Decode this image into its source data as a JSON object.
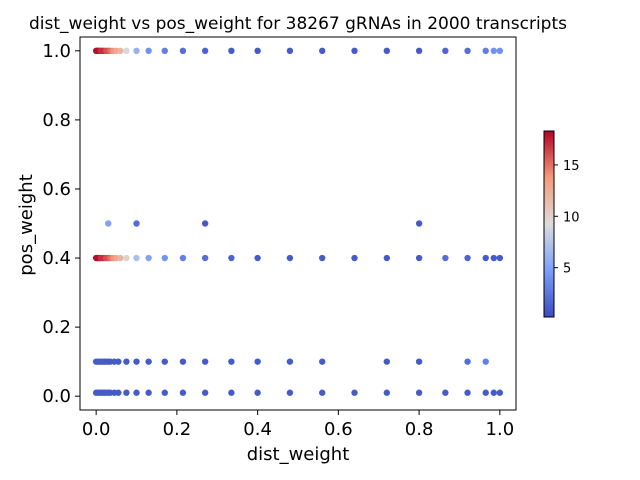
{
  "chart_data": {
    "type": "scatter",
    "title": "dist_weight vs pos_weight for 38267 gRNAs in 2000 transcripts",
    "xlabel": "dist_weight",
    "ylabel": "pos_weight",
    "xlim": [
      -0.04,
      1.04
    ],
    "ylim": [
      -0.04,
      1.04
    ],
    "xticks": [
      0.0,
      0.2,
      0.4,
      0.6,
      0.8,
      1.0
    ],
    "yticks": [
      0.0,
      0.2,
      0.4,
      0.6,
      0.8,
      1.0
    ],
    "xtick_labels": [
      "0.0",
      "0.2",
      "0.4",
      "0.6",
      "0.8",
      "1.0"
    ],
    "ytick_labels": [
      "0.0",
      "0.2",
      "0.4",
      "0.6",
      "0.8",
      "1.0"
    ],
    "grid": false,
    "colormap": "coolwarm",
    "colorbar": {
      "min": 0.2,
      "max": 18.3,
      "ticks": [
        5,
        10,
        15
      ],
      "tick_labels": [
        "5",
        "10",
        "15"
      ]
    },
    "series": [
      {
        "y": 1.0,
        "points": [
          {
            "x": 0.0,
            "c": 18
          },
          {
            "x": 0.003,
            "c": 18
          },
          {
            "x": 0.006,
            "c": 18
          },
          {
            "x": 0.009,
            "c": 18
          },
          {
            "x": 0.012,
            "c": 17
          },
          {
            "x": 0.016,
            "c": 17
          },
          {
            "x": 0.02,
            "c": 17
          },
          {
            "x": 0.025,
            "c": 16
          },
          {
            "x": 0.03,
            "c": 16
          },
          {
            "x": 0.035,
            "c": 15
          },
          {
            "x": 0.042,
            "c": 14
          },
          {
            "x": 0.05,
            "c": 13
          },
          {
            "x": 0.06,
            "c": 12
          },
          {
            "x": 0.075,
            "c": 9
          },
          {
            "x": 0.1,
            "c": 6
          },
          {
            "x": 0.13,
            "c": 4
          },
          {
            "x": 0.17,
            "c": 3
          },
          {
            "x": 0.215,
            "c": 2
          },
          {
            "x": 0.27,
            "c": 1.5
          },
          {
            "x": 0.335,
            "c": 1
          },
          {
            "x": 0.4,
            "c": 1
          },
          {
            "x": 0.48,
            "c": 1
          },
          {
            "x": 0.56,
            "c": 1
          },
          {
            "x": 0.64,
            "c": 1
          },
          {
            "x": 0.72,
            "c": 1
          },
          {
            "x": 0.8,
            "c": 1
          },
          {
            "x": 0.865,
            "c": 1.5
          },
          {
            "x": 0.92,
            "c": 2
          },
          {
            "x": 0.965,
            "c": 3
          },
          {
            "x": 0.985,
            "c": 4
          },
          {
            "x": 1.0,
            "c": 4
          }
        ]
      },
      {
        "y": 0.5,
        "points": [
          {
            "x": 0.03,
            "c": 5
          },
          {
            "x": 0.1,
            "c": 2
          },
          {
            "x": 0.27,
            "c": 1
          },
          {
            "x": 0.8,
            "c": 1
          }
        ]
      },
      {
        "y": 0.4,
        "points": [
          {
            "x": 0.0,
            "c": 18
          },
          {
            "x": 0.003,
            "c": 18
          },
          {
            "x": 0.006,
            "c": 18
          },
          {
            "x": 0.009,
            "c": 18
          },
          {
            "x": 0.012,
            "c": 17
          },
          {
            "x": 0.016,
            "c": 17
          },
          {
            "x": 0.02,
            "c": 17
          },
          {
            "x": 0.025,
            "c": 16
          },
          {
            "x": 0.03,
            "c": 16
          },
          {
            "x": 0.035,
            "c": 15
          },
          {
            "x": 0.042,
            "c": 14
          },
          {
            "x": 0.05,
            "c": 13
          },
          {
            "x": 0.06,
            "c": 12
          },
          {
            "x": 0.075,
            "c": 10
          },
          {
            "x": 0.1,
            "c": 7
          },
          {
            "x": 0.13,
            "c": 5
          },
          {
            "x": 0.17,
            "c": 4
          },
          {
            "x": 0.215,
            "c": 3
          },
          {
            "x": 0.27,
            "c": 2
          },
          {
            "x": 0.335,
            "c": 1.5
          },
          {
            "x": 0.4,
            "c": 1
          },
          {
            "x": 0.48,
            "c": 1
          },
          {
            "x": 0.56,
            "c": 1
          },
          {
            "x": 0.64,
            "c": 1
          },
          {
            "x": 0.72,
            "c": 1
          },
          {
            "x": 0.8,
            "c": 1
          },
          {
            "x": 0.865,
            "c": 2
          },
          {
            "x": 0.92,
            "c": 1.5
          },
          {
            "x": 0.965,
            "c": 1
          },
          {
            "x": 0.985,
            "c": 1
          },
          {
            "x": 1.0,
            "c": 1
          }
        ]
      },
      {
        "y": 0.1,
        "points": [
          {
            "x": 0.0,
            "c": 1
          },
          {
            "x": 0.005,
            "c": 1
          },
          {
            "x": 0.01,
            "c": 1
          },
          {
            "x": 0.015,
            "c": 1
          },
          {
            "x": 0.02,
            "c": 1
          },
          {
            "x": 0.025,
            "c": 1
          },
          {
            "x": 0.03,
            "c": 1
          },
          {
            "x": 0.035,
            "c": 1
          },
          {
            "x": 0.045,
            "c": 1
          },
          {
            "x": 0.055,
            "c": 1
          },
          {
            "x": 0.075,
            "c": 1
          },
          {
            "x": 0.1,
            "c": 1
          },
          {
            "x": 0.13,
            "c": 1
          },
          {
            "x": 0.17,
            "c": 1
          },
          {
            "x": 0.215,
            "c": 1
          },
          {
            "x": 0.27,
            "c": 1
          },
          {
            "x": 0.335,
            "c": 1
          },
          {
            "x": 0.4,
            "c": 1
          },
          {
            "x": 0.48,
            "c": 1
          },
          {
            "x": 0.56,
            "c": 1
          },
          {
            "x": 0.72,
            "c": 1
          },
          {
            "x": 0.8,
            "c": 1
          },
          {
            "x": 0.92,
            "c": 2
          },
          {
            "x": 0.965,
            "c": 3
          }
        ]
      },
      {
        "y": 0.01,
        "points": [
          {
            "x": 0.0,
            "c": 1
          },
          {
            "x": 0.005,
            "c": 1
          },
          {
            "x": 0.01,
            "c": 1
          },
          {
            "x": 0.015,
            "c": 1
          },
          {
            "x": 0.02,
            "c": 1
          },
          {
            "x": 0.025,
            "c": 1
          },
          {
            "x": 0.03,
            "c": 1
          },
          {
            "x": 0.035,
            "c": 1
          },
          {
            "x": 0.045,
            "c": 1
          },
          {
            "x": 0.055,
            "c": 1
          },
          {
            "x": 0.075,
            "c": 1
          },
          {
            "x": 0.1,
            "c": 1
          },
          {
            "x": 0.13,
            "c": 1
          },
          {
            "x": 0.17,
            "c": 1
          },
          {
            "x": 0.215,
            "c": 1
          },
          {
            "x": 0.27,
            "c": 1
          },
          {
            "x": 0.335,
            "c": 1
          },
          {
            "x": 0.4,
            "c": 1
          },
          {
            "x": 0.48,
            "c": 1
          },
          {
            "x": 0.56,
            "c": 1
          },
          {
            "x": 0.64,
            "c": 1
          },
          {
            "x": 0.72,
            "c": 1
          },
          {
            "x": 0.8,
            "c": 1
          },
          {
            "x": 0.865,
            "c": 1
          },
          {
            "x": 0.92,
            "c": 1
          },
          {
            "x": 0.965,
            "c": 1
          },
          {
            "x": 0.985,
            "c": 1
          },
          {
            "x": 1.0,
            "c": 1
          }
        ]
      }
    ]
  }
}
